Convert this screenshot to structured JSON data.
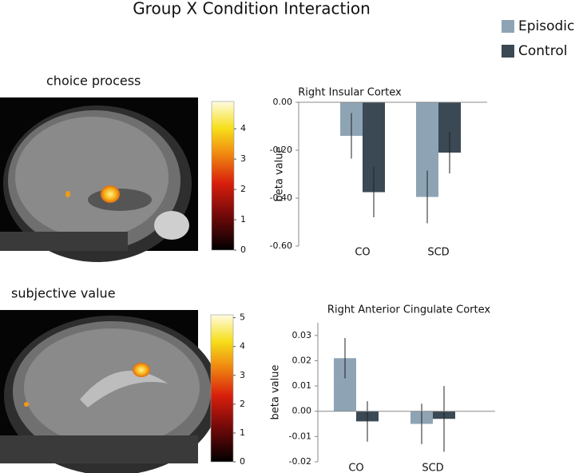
{
  "title": "Group X Condition Interaction",
  "legend": [
    {
      "name": "Episodic",
      "color": "#8ea4b5"
    },
    {
      "name": "Control",
      "color": "#3a4954"
    }
  ],
  "panels": [
    {
      "label": "choice process",
      "colorbar": {
        "lim": [
          0,
          4.9
        ],
        "ticks": [
          0,
          1,
          2,
          3,
          4
        ]
      }
    },
    {
      "label": "subjective value",
      "colorbar": {
        "lim": [
          0,
          5.1
        ],
        "ticks": [
          0,
          1,
          2,
          3,
          4,
          5
        ]
      }
    }
  ],
  "chart_data": [
    {
      "type": "bar",
      "title": "Right Insular Cortex",
      "y_label": "beta value",
      "categories": [
        "CO",
        "SCD"
      ],
      "series": [
        {
          "name": "Episodic",
          "color": "#8ea4b5",
          "values": [
            -0.14,
            -0.395
          ],
          "errors": [
            0.095,
            0.11
          ]
        },
        {
          "name": "Control",
          "color": "#3a4954",
          "values": [
            -0.375,
            -0.21
          ],
          "errors": [
            0.105,
            0.087
          ]
        }
      ],
      "ylim": [
        -0.6,
        0
      ],
      "yticks": [
        {
          "value": 0,
          "label": "0.00"
        },
        {
          "value": -0.2,
          "label": "-0.20"
        },
        {
          "value": -0.4,
          "label": "-0.40"
        },
        {
          "value": -0.6,
          "label": "-0.60"
        }
      ]
    },
    {
      "type": "bar",
      "title": "Right Anterior Cingulate Cortex",
      "y_label": "beta value",
      "categories": [
        "CO",
        "SCD"
      ],
      "series": [
        {
          "name": "Episodic",
          "color": "#8ea4b5",
          "values": [
            0.021,
            -0.005
          ],
          "errors": [
            0.008,
            0.008
          ]
        },
        {
          "name": "Control",
          "color": "#3a4954",
          "values": [
            -0.004,
            -0.003
          ],
          "errors": [
            0.008,
            0.013
          ]
        }
      ],
      "ylim": [
        -0.02,
        0.035
      ],
      "yticks": [
        0.03,
        0.02,
        0.01,
        {
          "value": 0,
          "label": "0.00"
        },
        -0.01,
        -0.02
      ]
    }
  ]
}
